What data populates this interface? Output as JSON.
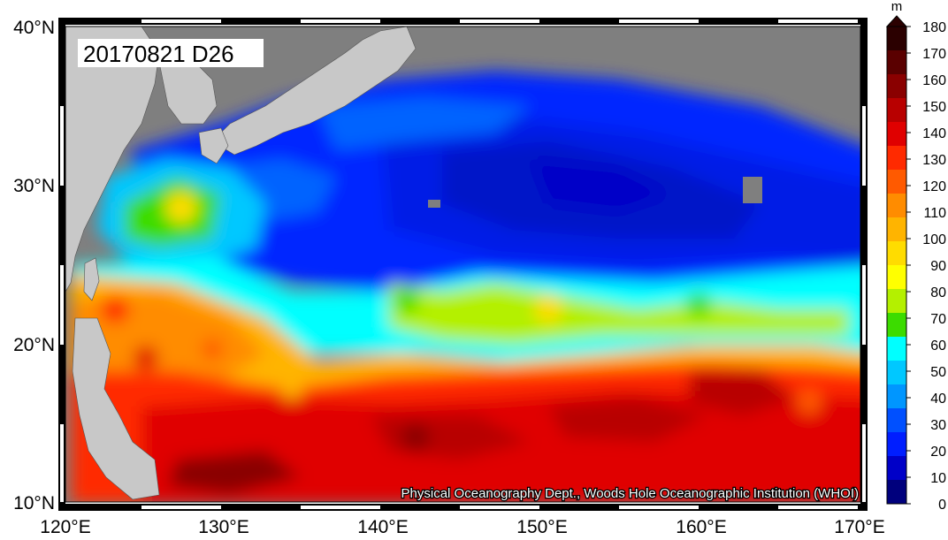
{
  "title": "20170821 D26",
  "credit": "Physical Oceanography Dept., Woods Hole Oceanographic Institution (WHOI)",
  "lat_labels": [
    "40°N",
    "30°N",
    "20°N",
    "10°N"
  ],
  "lon_labels": [
    "120°E",
    "130°E",
    "140°E",
    "150°E",
    "160°E",
    "170°E"
  ],
  "colorbar": {
    "unit": "m",
    "ticks": [
      "180",
      "170",
      "160",
      "150",
      "140",
      "130",
      "120",
      "110",
      "100",
      "90",
      "80",
      "70",
      "60",
      "50",
      "40",
      "30",
      "20",
      "10",
      "0"
    ],
    "colors": [
      "#2b0000",
      "#5a0000",
      "#8a0000",
      "#b80000",
      "#e00000",
      "#ff2a00",
      "#ff5a00",
      "#ff8c00",
      "#ffb400",
      "#ffdc00",
      "#ffff00",
      "#b4f000",
      "#3cdc00",
      "#00ffff",
      "#00c8ff",
      "#0096ff",
      "#0050ff",
      "#001eff",
      "#0000c8",
      "#00007d"
    ]
  },
  "colors": {
    "land": "#c8c8c8",
    "no_data": "#7f7f7f",
    "frame_dark": "#000000",
    "frame_light": "#ffffff"
  }
}
